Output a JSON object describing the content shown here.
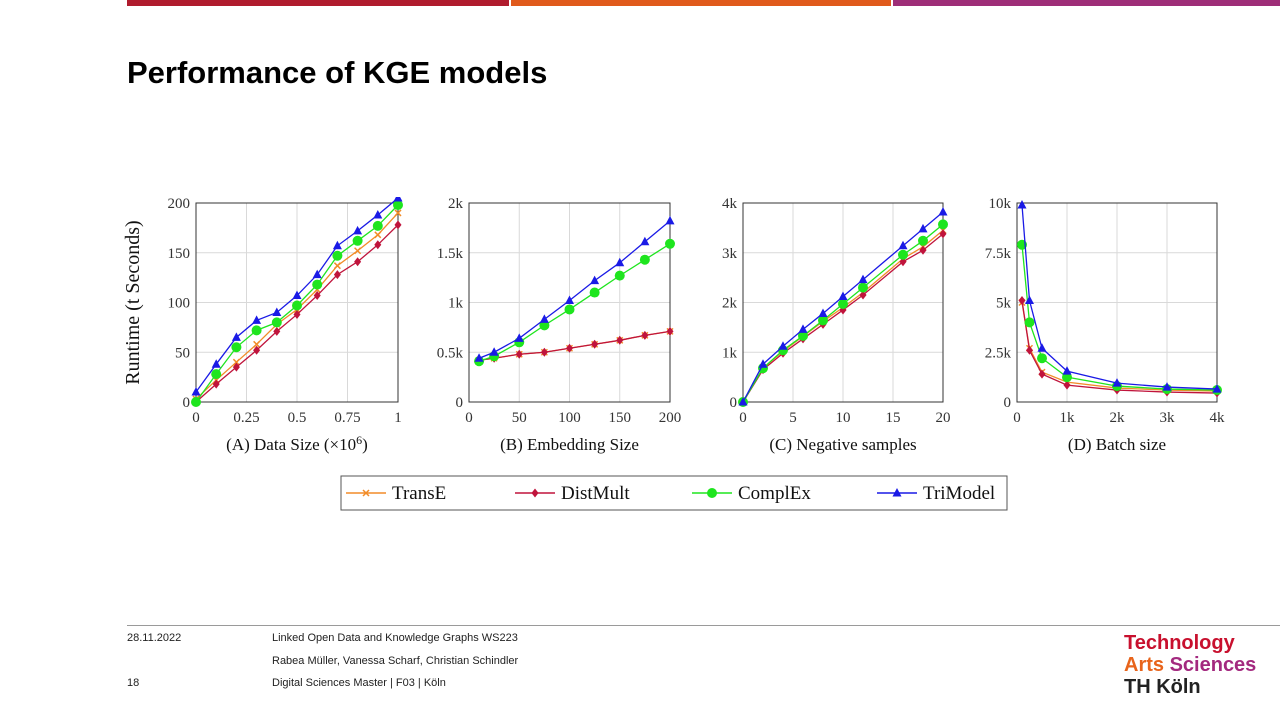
{
  "slide": {
    "title": "Performance of KGE models",
    "bar_colors": [
      "#b01c2e",
      "#e05a1c",
      "#9e2e78"
    ]
  },
  "chart_data": [
    {
      "type": "line",
      "caption": "(A) Data Size (×10",
      "caption_sup": "6",
      "caption_end": ")",
      "ylabel": "Runtime (t Seconds)",
      "xlim": [
        0,
        1
      ],
      "ylim": [
        0,
        200
      ],
      "xticks": [
        0,
        0.25,
        0.5,
        0.75,
        1
      ],
      "xtick_labels": [
        "0",
        "0.25",
        "0.5",
        "0.75",
        "1"
      ],
      "yticks": [
        0,
        50,
        100,
        150,
        200
      ],
      "ytick_labels": [
        "0",
        "50",
        "100",
        "150",
        "200"
      ],
      "series": [
        {
          "name": "TransE",
          "x": [
            0,
            0.1,
            0.2,
            0.3,
            0.4,
            0.5,
            0.6,
            0.7,
            0.8,
            0.9,
            1
          ],
          "values": [
            3,
            22,
            40,
            58,
            78,
            93,
            113,
            137,
            152,
            168,
            190
          ]
        },
        {
          "name": "DistMult",
          "x": [
            0,
            0.1,
            0.2,
            0.3,
            0.4,
            0.5,
            0.6,
            0.7,
            0.8,
            0.9,
            1
          ],
          "values": [
            0,
            18,
            35,
            52,
            71,
            88,
            107,
            128,
            141,
            158,
            178
          ]
        },
        {
          "name": "ComplEx",
          "x": [
            0,
            0.1,
            0.2,
            0.3,
            0.4,
            0.5,
            0.6,
            0.7,
            0.8,
            0.9,
            1
          ],
          "values": [
            0,
            28,
            55,
            72,
            80,
            97,
            118,
            147,
            162,
            177,
            198
          ]
        },
        {
          "name": "TriModel",
          "x": [
            0,
            0.1,
            0.2,
            0.3,
            0.4,
            0.5,
            0.6,
            0.7,
            0.8,
            0.9,
            1
          ],
          "values": [
            10,
            38,
            65,
            82,
            90,
            107,
            128,
            157,
            172,
            188,
            205
          ]
        }
      ]
    },
    {
      "type": "line",
      "caption": "(B) Embedding Size",
      "xlim": [
        0,
        200
      ],
      "ylim": [
        0,
        2000
      ],
      "xticks": [
        0,
        50,
        100,
        150,
        200
      ],
      "xtick_labels": [
        "0",
        "50",
        "100",
        "150",
        "200"
      ],
      "yticks": [
        0,
        500,
        1000,
        1500,
        2000
      ],
      "ytick_labels": [
        "0",
        "0.5k",
        "1k",
        "1.5k",
        "2k"
      ],
      "series": [
        {
          "name": "TransE",
          "x": [
            10,
            25,
            50,
            75,
            100,
            125,
            150,
            175,
            200
          ],
          "values": [
            420,
            440,
            480,
            500,
            540,
            580,
            620,
            670,
            710
          ]
        },
        {
          "name": "DistMult",
          "x": [
            10,
            25,
            50,
            75,
            100,
            125,
            150,
            175,
            200
          ],
          "values": [
            420,
            440,
            480,
            500,
            540,
            580,
            620,
            670,
            710
          ]
        },
        {
          "name": "ComplEx",
          "x": [
            10,
            25,
            50,
            75,
            100,
            125,
            150,
            175,
            200
          ],
          "values": [
            410,
            460,
            600,
            770,
            930,
            1100,
            1270,
            1430,
            1590
          ]
        },
        {
          "name": "TriModel",
          "x": [
            10,
            25,
            50,
            75,
            100,
            125,
            150,
            175,
            200
          ],
          "values": [
            440,
            500,
            640,
            830,
            1020,
            1220,
            1400,
            1610,
            1820
          ]
        }
      ]
    },
    {
      "type": "line",
      "caption": "(C) Negative samples",
      "xlim": [
        0,
        20
      ],
      "ylim": [
        0,
        4000
      ],
      "xticks": [
        0,
        5,
        10,
        15,
        20
      ],
      "xtick_labels": [
        "0",
        "5",
        "10",
        "15",
        "20"
      ],
      "yticks": [
        0,
        1000,
        2000,
        3000,
        4000
      ],
      "ytick_labels": [
        "0",
        "1k",
        "2k",
        "3k",
        "4k"
      ],
      "series": [
        {
          "name": "TransE",
          "x": [
            0,
            2,
            4,
            6,
            8,
            10,
            12,
            16,
            18,
            20
          ],
          "values": [
            0,
            680,
            1020,
            1320,
            1620,
            1900,
            2200,
            2880,
            3120,
            3450
          ]
        },
        {
          "name": "DistMult",
          "x": [
            0,
            2,
            4,
            6,
            8,
            10,
            12,
            16,
            18,
            20
          ],
          "values": [
            0,
            650,
            980,
            1270,
            1560,
            1850,
            2150,
            2820,
            3050,
            3380
          ]
        },
        {
          "name": "ComplEx",
          "x": [
            0,
            2,
            4,
            6,
            8,
            10,
            12,
            16,
            18,
            20
          ],
          "values": [
            0,
            680,
            1040,
            1330,
            1640,
            1970,
            2300,
            2960,
            3240,
            3570
          ]
        },
        {
          "name": "TriModel",
          "x": [
            0,
            2,
            4,
            6,
            8,
            10,
            12,
            16,
            18,
            20
          ],
          "values": [
            0,
            760,
            1120,
            1460,
            1780,
            2120,
            2460,
            3140,
            3480,
            3820
          ]
        }
      ]
    },
    {
      "type": "line",
      "caption": "(D) Batch size",
      "xlim": [
        0,
        4000
      ],
      "ylim": [
        0,
        10000
      ],
      "xticks": [
        0,
        1000,
        2000,
        3000,
        4000
      ],
      "xtick_labels": [
        "0",
        "1k",
        "2k",
        "3k",
        "4k"
      ],
      "yticks": [
        0,
        2500,
        5000,
        7500,
        10000
      ],
      "ytick_labels": [
        "0",
        "2.5k",
        "5k",
        "7.5k",
        "10k"
      ],
      "series": [
        {
          "name": "TransE",
          "x": [
            100,
            250,
            500,
            1000,
            2000,
            3000,
            4000
          ],
          "values": [
            5000,
            2700,
            1500,
            1000,
            700,
            600,
            550
          ]
        },
        {
          "name": "DistMult",
          "x": [
            100,
            250,
            500,
            1000,
            2000,
            3000,
            4000
          ],
          "values": [
            5100,
            2600,
            1400,
            850,
            600,
            500,
            450
          ]
        },
        {
          "name": "ComplEx",
          "x": [
            100,
            250,
            500,
            1000,
            2000,
            3000,
            4000
          ],
          "values": [
            7900,
            4000,
            2200,
            1250,
            800,
            650,
            600
          ]
        },
        {
          "name": "TriModel",
          "x": [
            100,
            250,
            500,
            1000,
            2000,
            3000,
            4000
          ],
          "values": [
            9900,
            5100,
            2700,
            1550,
            950,
            750,
            650
          ]
        }
      ]
    }
  ],
  "legend": {
    "entries": [
      {
        "name": "TransE",
        "color": "#f28c28",
        "marker": "x"
      },
      {
        "name": "DistMult",
        "color": "#c0143c",
        "marker": "diamond"
      },
      {
        "name": "ComplEx",
        "color": "#1ee51e",
        "marker": "circle"
      },
      {
        "name": "TriModel",
        "color": "#1a1ae6",
        "marker": "triangle"
      }
    ]
  },
  "footer": {
    "date": "28.11.2022",
    "page": "18",
    "course": "Linked Open Data and Knowledge Graphs WS223",
    "authors": "Rabea Müller, Vanessa Scharf, Christian Schindler",
    "program": "Digital Sciences Master | F03 | Köln"
  },
  "logo": {
    "line1": "Technology",
    "line2a": "Arts",
    "line2b": "Sciences",
    "line3": "TH Köln",
    "colors": {
      "technology": "#c8102e",
      "arts": "#e8641b",
      "sciences": "#a3297f",
      "th": "#222222"
    }
  }
}
